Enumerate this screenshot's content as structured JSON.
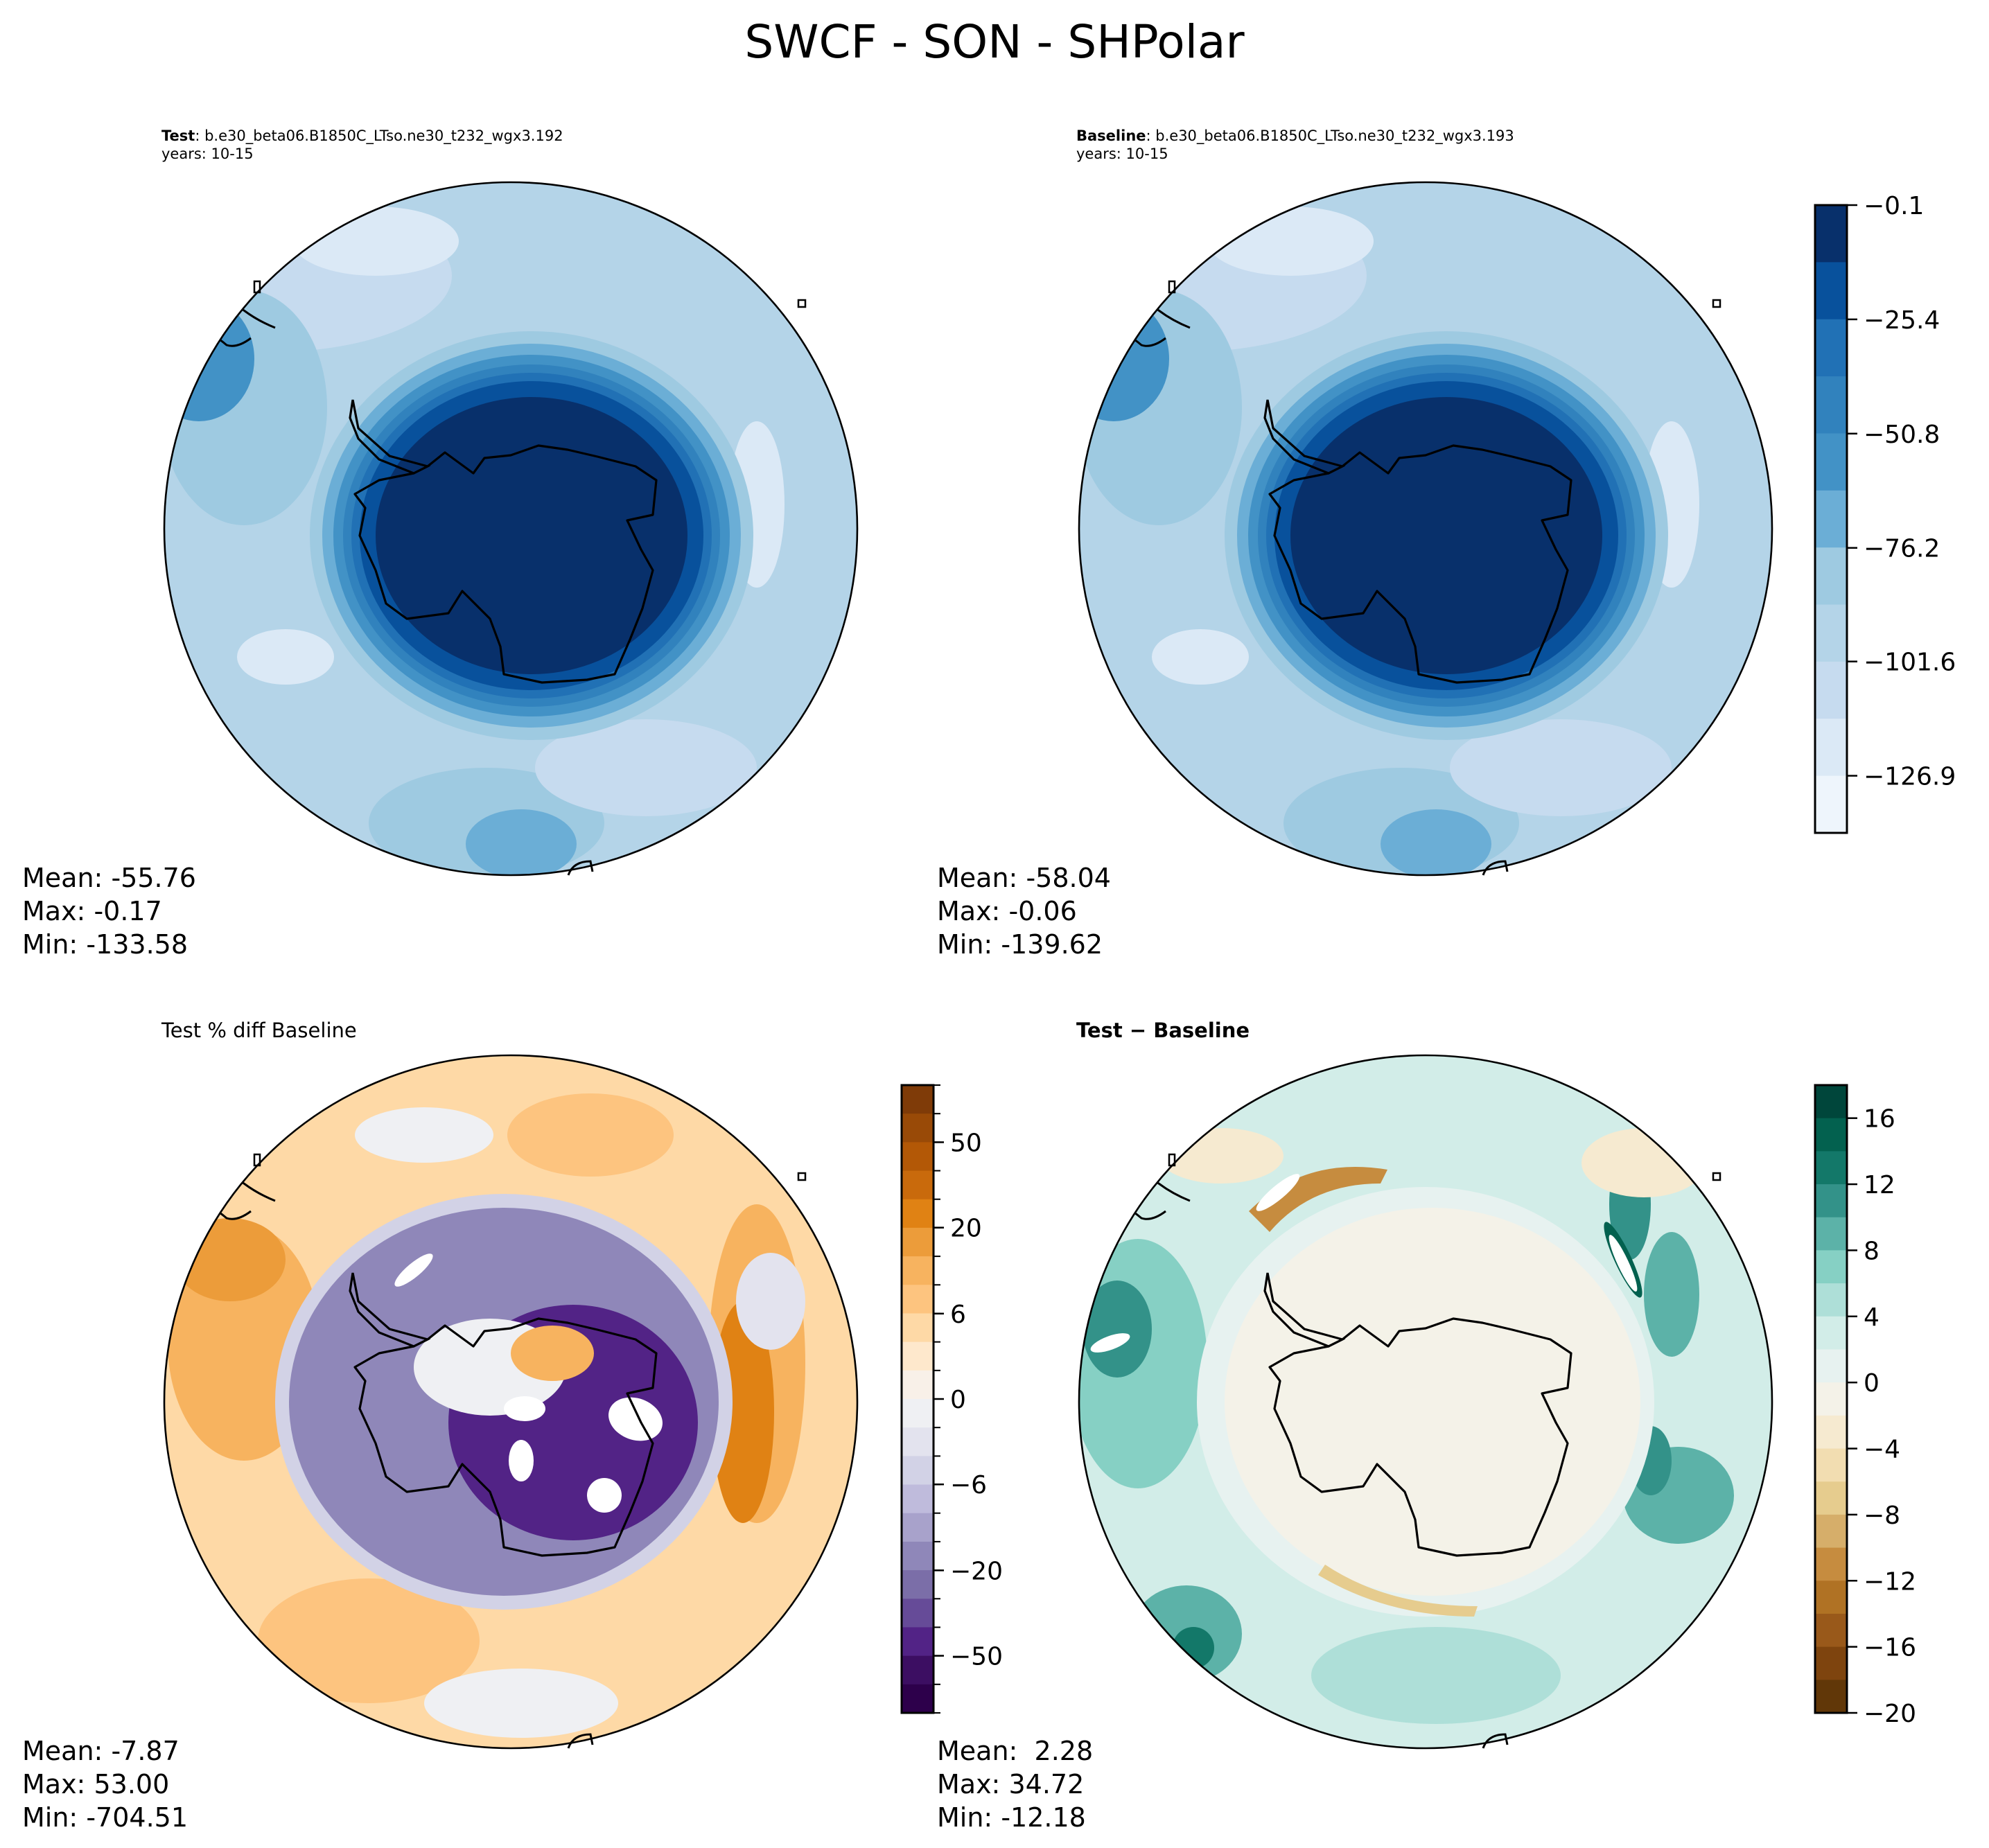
{
  "figure": {
    "title": "SWCF - SON - SHPolar"
  },
  "chart_data": [
    {
      "type": "heatmap",
      "panel": "test",
      "projection": "south-polar-stereographic",
      "title_bold": "Test",
      "title_rest": ": b.e30_beta06.B1850C_LTso.ne30_t232_wgx3.192",
      "subtitle": "years: 10-15",
      "stats": {
        "mean_label": "Mean:",
        "mean": "-55.76",
        "max_label": "Max:",
        "max": "-0.17",
        "min_label": "Min:",
        "min": "-133.58"
      },
      "field_description": "Very negative SWCF (dark blue, near max) over Antarctic continent and surrounding ring; moderate light-blue values over Southern Ocean",
      "colorbar": "shared-abs"
    },
    {
      "type": "heatmap",
      "panel": "baseline",
      "projection": "south-polar-stereographic",
      "title_bold": "Baseline",
      "title_rest": ": b.e30_beta06.B1850C_LTso.ne30_t232_wgx3.193",
      "subtitle": "years: 10-15",
      "stats": {
        "mean_label": "Mean:",
        "mean": "-58.04",
        "max_label": "Max:",
        "max": "-0.06",
        "min_label": "Min:",
        "min": "-139.62"
      },
      "field_description": "Similar structure to Test; dark-blue cap over Antarctica, lighter blues over ocean",
      "colorbar": {
        "name": "abs",
        "orientation": "vertical",
        "range": [
          -139.62,
          -0.1
        ],
        "ticks": [
          "−0.1",
          "−25.4",
          "−50.8",
          "−76.2",
          "−101.6",
          "−126.9"
        ],
        "tick_fractions_from_top": [
          0.0,
          0.182,
          0.364,
          0.546,
          0.727,
          0.909
        ],
        "colors_top_to_bottom": [
          "#08306b",
          "#08519c",
          "#2171b5",
          "#3182bd",
          "#4292c6",
          "#6baed6",
          "#9ecae1",
          "#b4d4e8",
          "#c6dbef",
          "#dbe9f6",
          "#eef5fc"
        ]
      }
    },
    {
      "type": "heatmap",
      "panel": "pct-diff",
      "projection": "south-polar-stereographic",
      "title": "Test % diff Baseline",
      "stats": {
        "mean_label": "Mean:",
        "mean": "-7.87",
        "max_label": "Max:",
        "max": "53.00",
        "min_label": "Min:",
        "min": "-704.51"
      },
      "field_description": "Purple (negative % diff) over Antarctica and inner ring, orange (positive) over surrounding Southern Ocean; white holes where below colorbar range",
      "colorbar": {
        "name": "pct",
        "orientation": "vertical",
        "ticks": [
          "50",
          "20",
          "6",
          "0",
          "−6",
          "−20",
          "−50"
        ],
        "tick_fractions_from_top": [
          0.091,
          0.227,
          0.364,
          0.5,
          0.636,
          0.773,
          0.909
        ],
        "minor_tick_count": 23,
        "colors_top_to_bottom": [
          "#7f3b08",
          "#994a07",
          "#b35806",
          "#c96a0c",
          "#e08214",
          "#ec9c3a",
          "#f7b35f",
          "#fdc47f",
          "#fed9a6",
          "#fee8cc",
          "#f8f0e8",
          "#eff0f3",
          "#e3e3ee",
          "#d2d2e6",
          "#bfbbdc",
          "#a8a2cb",
          "#8f87b9",
          "#7b6ea8",
          "#664b98",
          "#522386",
          "#3c0e62",
          "#2d004b"
        ]
      }
    },
    {
      "type": "heatmap",
      "panel": "abs-diff",
      "projection": "south-polar-stereographic",
      "title": "Test − Baseline",
      "stats": {
        "mean_label": "Mean:",
        "mean": " 2.28",
        "max_label": "Max:",
        "max": "34.72",
        "min_label": "Min:",
        "min": "-12.18"
      },
      "field_description": "Near-zero cream over Antarctica; brown negative arcs near coast; teal positive patches over Southern Ocean; white where above colorbar range",
      "colorbar": {
        "name": "diff",
        "orientation": "vertical",
        "range": [
          -20,
          18
        ],
        "ticks": [
          "16",
          "12",
          "8",
          "4",
          "0",
          "−4",
          "−8",
          "−12",
          "−16",
          "−20"
        ],
        "tick_values": [
          16,
          12,
          8,
          4,
          0,
          -4,
          -8,
          -12,
          -16,
          -20
        ],
        "colors_top_to_bottom": [
          "#00463b",
          "#03614f",
          "#137869",
          "#339289",
          "#5cb2a8",
          "#86d0c4",
          "#aedfd8",
          "#d2ede8",
          "#e7f2f0",
          "#f4f2e8",
          "#f6ead0",
          "#f2ddb1",
          "#e6cc8e",
          "#d6ae6a",
          "#c68c3f",
          "#b07224",
          "#99591a",
          "#7e440e",
          "#613708"
        ]
      }
    }
  ]
}
